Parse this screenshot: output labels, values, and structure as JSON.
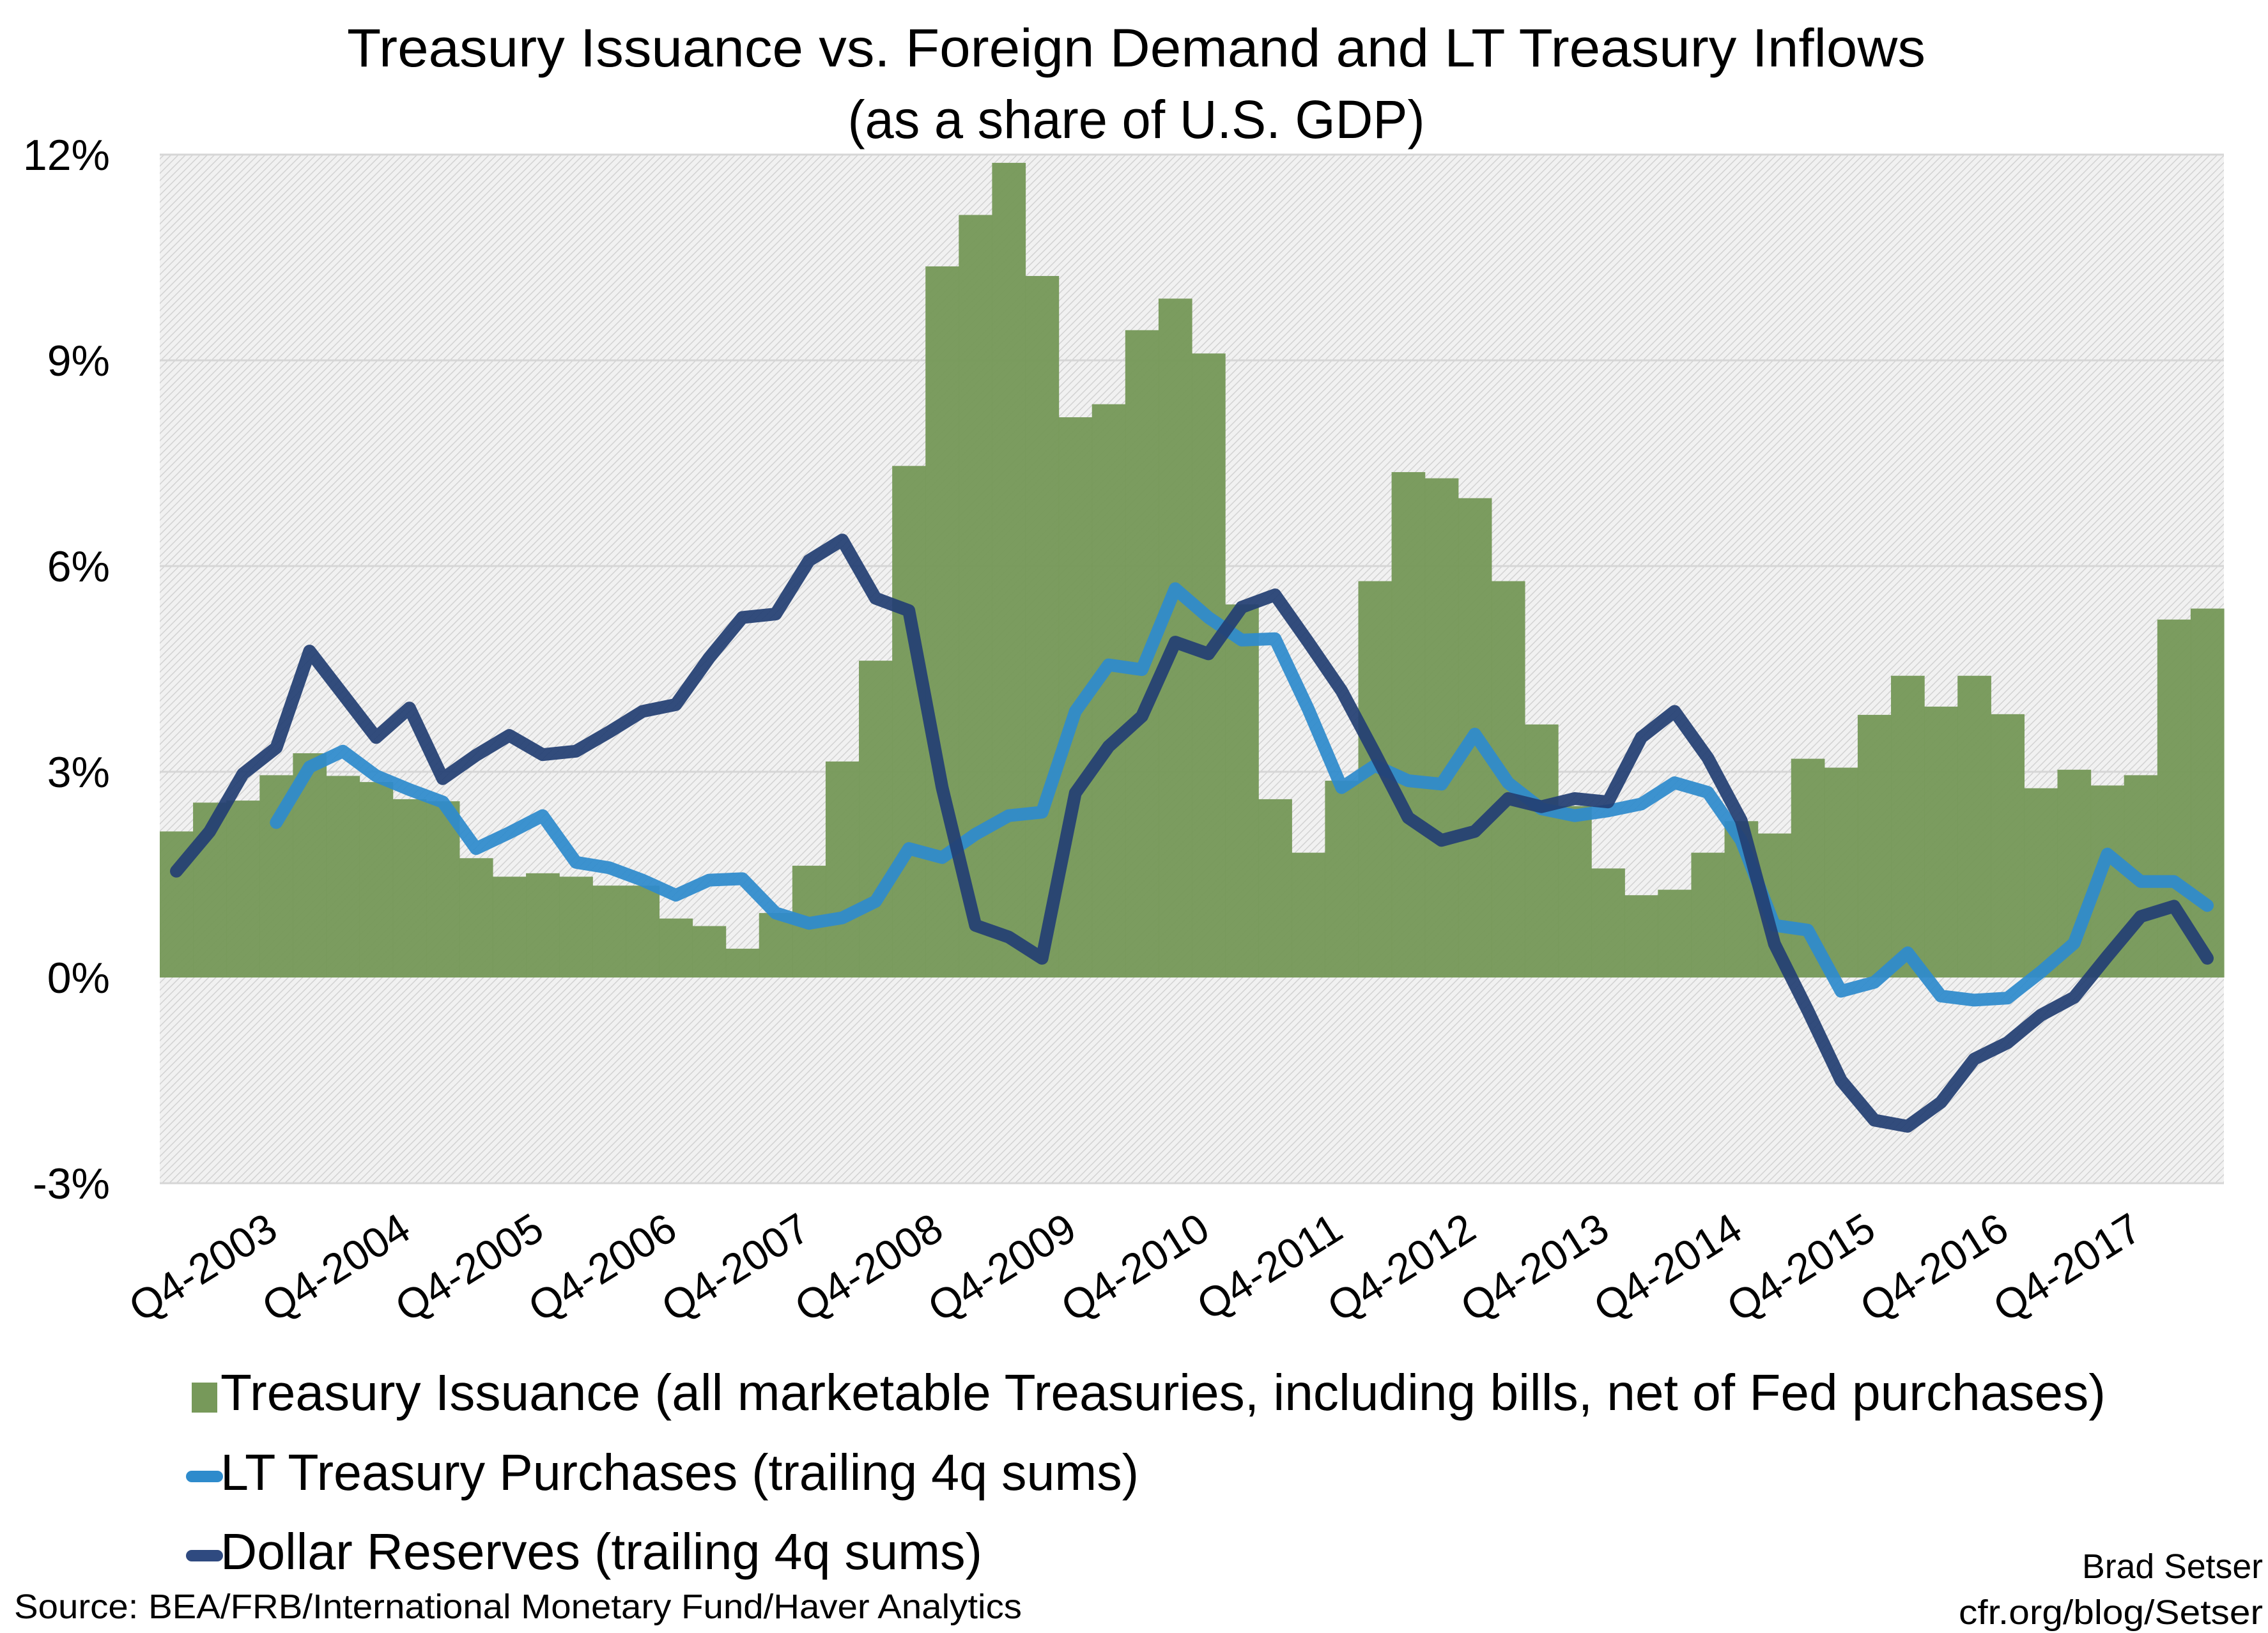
{
  "chart_data": {
    "type": "bar+line",
    "title": "Treasury Issuance vs. Foreign Demand and LT  Treasury Inflows",
    "subtitle": "(as a share of U.S. GDP)",
    "xlabel": "",
    "ylabel": "",
    "ylim": [
      -3,
      12
    ],
    "yticks": [
      -3,
      0,
      3,
      6,
      9,
      12
    ],
    "ytick_labels": [
      "-3%",
      "0%",
      "3%",
      "6%",
      "9%",
      "12%"
    ],
    "grid": true,
    "legend_position": "bottom",
    "categories": [
      "Q1-2003",
      "Q2-2003",
      "Q3-2003",
      "Q4-2003",
      "Q1-2004",
      "Q2-2004",
      "Q3-2004",
      "Q4-2004",
      "Q1-2005",
      "Q2-2005",
      "Q3-2005",
      "Q4-2005",
      "Q1-2006",
      "Q2-2006",
      "Q3-2006",
      "Q4-2006",
      "Q1-2007",
      "Q2-2007",
      "Q3-2007",
      "Q4-2007",
      "Q1-2008",
      "Q2-2008",
      "Q3-2008",
      "Q4-2008",
      "Q1-2009",
      "Q2-2009",
      "Q3-2009",
      "Q4-2009",
      "Q1-2010",
      "Q2-2010",
      "Q3-2010",
      "Q4-2010",
      "Q1-2011",
      "Q2-2011",
      "Q3-2011",
      "Q4-2011",
      "Q1-2012",
      "Q2-2012",
      "Q3-2012",
      "Q4-2012",
      "Q1-2013",
      "Q2-2013",
      "Q3-2013",
      "Q4-2013",
      "Q1-2014",
      "Q2-2014",
      "Q3-2014",
      "Q4-2014",
      "Q1-2015",
      "Q2-2015",
      "Q3-2015",
      "Q4-2015",
      "Q1-2016",
      "Q2-2016",
      "Q3-2016",
      "Q4-2016",
      "Q1-2017",
      "Q2-2017",
      "Q3-2017",
      "Q4-2017",
      "Q1-2018",
      "Q2-2018"
    ],
    "xtick_labels": [
      "Q4-2003",
      "Q4-2004",
      "Q4-2005",
      "Q4-2006",
      "Q4-2007",
      "Q4-2008",
      "Q4-2009",
      "Q4-2010",
      "Q4-2011",
      "Q4-2012",
      "Q4-2013",
      "Q4-2014",
      "Q4-2015",
      "Q4-2016",
      "Q4-2017"
    ],
    "series": [
      {
        "name": "Treasury Issuance (all marketable Treasuries, including bills, net of Fed purchases)",
        "type": "bar",
        "color": "#77995a",
        "values": [
          2.13,
          2.55,
          2.58,
          2.95,
          3.27,
          2.94,
          2.85,
          2.6,
          2.57,
          1.74,
          1.47,
          1.52,
          1.47,
          1.34,
          1.34,
          0.86,
          0.75,
          0.42,
          0.94,
          1.63,
          3.15,
          4.62,
          7.46,
          10.37,
          11.12,
          11.88,
          10.23,
          8.17,
          8.36,
          9.44,
          9.9,
          9.1,
          5.44,
          2.6,
          1.82,
          2.87,
          5.78,
          7.37,
          7.28,
          6.99,
          5.78,
          3.69,
          2.5,
          1.59,
          1.2,
          1.28,
          1.82,
          2.28,
          2.1,
          3.19,
          3.06,
          3.83,
          4.4,
          3.95,
          4.4,
          3.84,
          2.76,
          3.03,
          2.8,
          2.95,
          5.22,
          5.38
        ]
      },
      {
        "name": "LT Treasury Purchases (trailing 4q sums)",
        "type": "line",
        "color": "#2e8bcc",
        "values": [
          null,
          null,
          null,
          2.26,
          3.07,
          3.3,
          2.94,
          2.74,
          2.56,
          1.88,
          2.11,
          2.36,
          1.68,
          1.6,
          1.42,
          1.2,
          1.42,
          1.44,
          0.94,
          0.79,
          0.87,
          1.11,
          1.88,
          1.75,
          2.09,
          2.36,
          2.41,
          3.88,
          4.56,
          4.49,
          5.67,
          5.25,
          4.92,
          4.94,
          3.91,
          2.77,
          3.09,
          2.87,
          2.82,
          3.55,
          2.84,
          2.46,
          2.36,
          2.43,
          2.53,
          2.84,
          2.7,
          2.0,
          0.76,
          0.69,
          -0.2,
          -0.07,
          0.36,
          -0.27,
          -0.33,
          -0.3,
          0.08,
          0.5,
          1.8,
          1.4,
          1.4,
          1.05
        ]
      },
      {
        "name": "Dollar Reserves (trailing 4q sums)",
        "type": "line",
        "color": "#233f73",
        "values": [
          1.55,
          2.13,
          2.97,
          3.35,
          4.76,
          4.13,
          3.5,
          3.93,
          2.9,
          3.24,
          3.53,
          3.25,
          3.3,
          3.58,
          3.88,
          3.98,
          4.66,
          5.25,
          5.3,
          6.08,
          6.38,
          5.53,
          5.35,
          2.77,
          0.76,
          0.59,
          0.28,
          2.69,
          3.37,
          3.81,
          4.89,
          4.72,
          5.4,
          5.58,
          4.89,
          4.18,
          3.27,
          2.33,
          2.0,
          2.13,
          2.61,
          2.49,
          2.61,
          2.56,
          3.5,
          3.88,
          3.2,
          2.29,
          0.49,
          -0.48,
          -1.5,
          -2.08,
          -2.17,
          -1.82,
          -1.19,
          -0.95,
          -0.55,
          -0.29,
          0.31,
          0.89,
          1.04,
          0.28
        ]
      }
    ]
  },
  "footer": {
    "source": "Source: BEA/FRB/International Monetary Fund/Haver Analytics",
    "author": "Brad Setser",
    "site": "cfr.org/blog/Setser"
  }
}
